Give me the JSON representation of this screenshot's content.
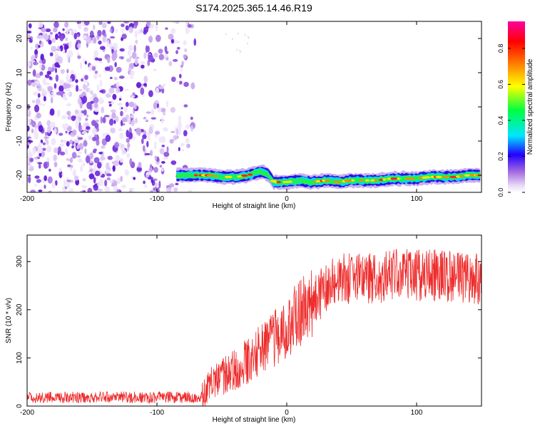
{
  "title": "S174.2025.365.14.46.R19",
  "chart_data": [
    {
      "type": "heatmap",
      "xlabel": "Height of straight line (km)",
      "ylabel": "Frequency (Hz)",
      "xlim": [
        -200,
        150
      ],
      "ylim": [
        -25,
        25
      ],
      "x_ticks": [
        -200,
        -100,
        0,
        100
      ],
      "y_ticks": [
        -20,
        -10,
        0,
        10,
        20
      ],
      "colorbar": {
        "label": "Normalized spectral amplitude",
        "range": [
          0,
          0.95
        ],
        "ticks": [
          0.0,
          0.2,
          0.4,
          0.6,
          0.8
        ],
        "colors": [
          "#ffffff",
          "#e8d9f7",
          "#a46be0",
          "#2400ff",
          "#00e5ff",
          "#00ff40",
          "#ffff00",
          "#ff8000",
          "#ff0000",
          "#ff00a0"
        ]
      },
      "noise_region_x": [
        -200,
        -70
      ],
      "signal_trace": {
        "x": [
          -85,
          -70,
          -60,
          -50,
          -40,
          -30,
          -20,
          -15,
          -10,
          -5,
          0,
          10,
          20,
          30,
          40,
          50,
          60,
          70,
          80,
          90,
          100,
          110,
          120,
          130,
          140,
          150
        ],
        "y": [
          -20,
          -20,
          -20,
          -20.5,
          -20.5,
          -20,
          -19,
          -19.5,
          -22,
          -22,
          -22,
          -21.5,
          -22,
          -21.5,
          -22,
          -21.5,
          -21.5,
          -21.5,
          -21,
          -21,
          -21,
          -20.5,
          -20.5,
          -20.5,
          -20,
          -20
        ]
      }
    },
    {
      "type": "line",
      "xlabel": "Height of straight line (km)",
      "ylabel": "SNR (10 * v/v)",
      "xlim": [
        -200,
        150
      ],
      "ylim": [
        0,
        355
      ],
      "x_ticks": [
        -200,
        -100,
        0,
        100
      ],
      "y_ticks": [
        0,
        100,
        200,
        300
      ],
      "color": "#ee2b2b",
      "trend": {
        "x": [
          -200,
          -150,
          -100,
          -80,
          -65,
          -60,
          -50,
          -40,
          -30,
          -20,
          -10,
          0,
          10,
          20,
          30,
          40,
          50,
          60,
          80,
          100,
          120,
          140,
          150
        ],
        "y": [
          18,
          18,
          18,
          18,
          19,
          45,
          60,
          75,
          95,
          120,
          140,
          160,
          195,
          215,
          240,
          262,
          265,
          268,
          270,
          272,
          270,
          268,
          265
        ]
      }
    }
  ]
}
